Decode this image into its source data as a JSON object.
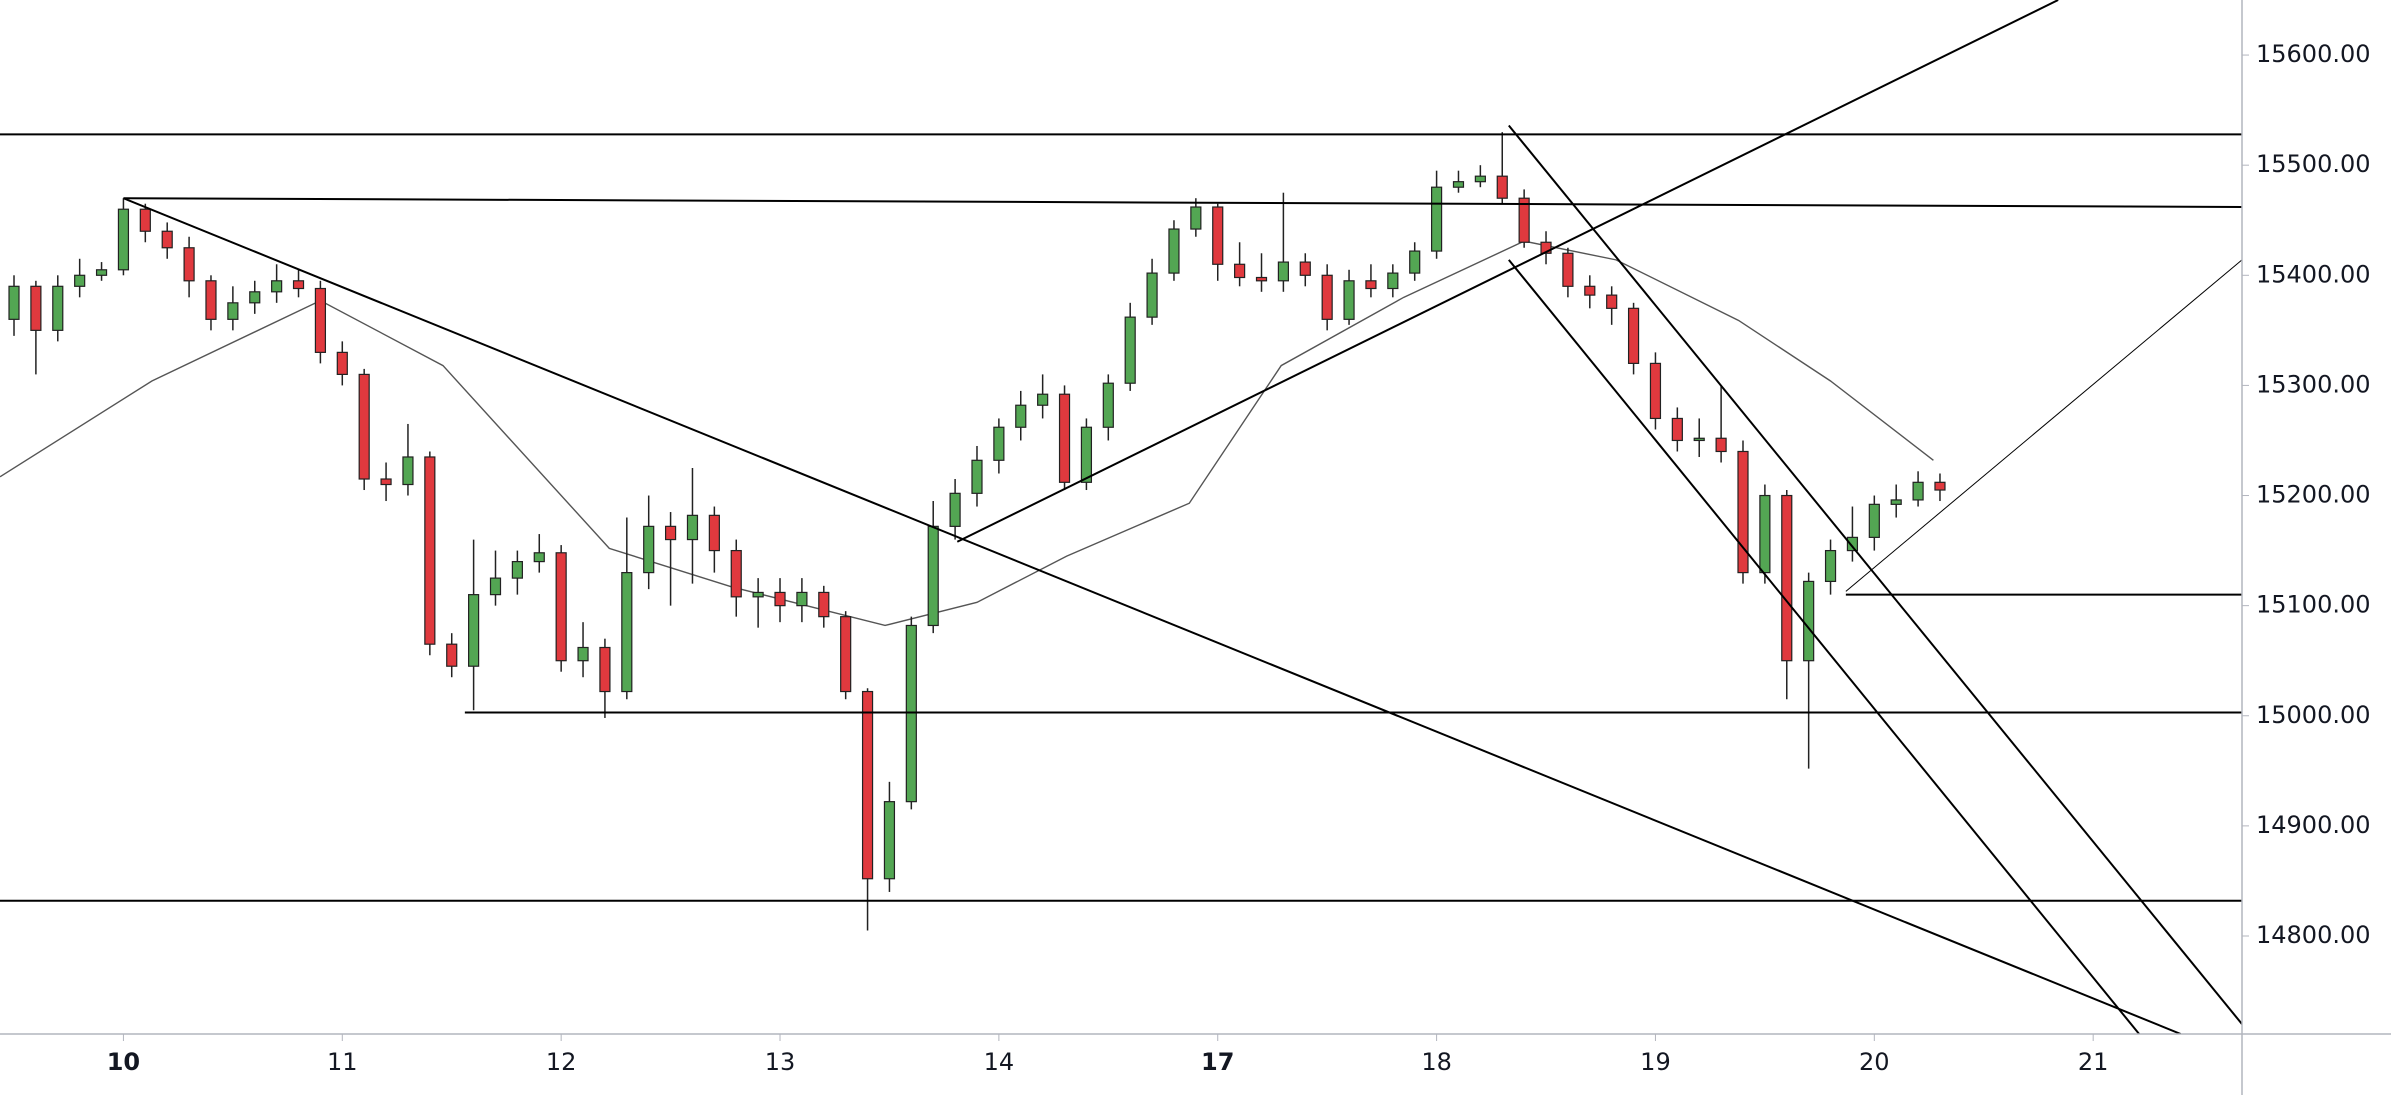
{
  "chart_data": {
    "type": "candlestick",
    "x": [
      -0.5,
      -0.4,
      -0.3,
      -0.2,
      -0.1,
      0,
      0.1,
      0.2,
      0.3,
      0.4,
      0.5,
      0.6,
      0.7,
      0.8,
      0.9,
      1,
      1.1,
      1.2,
      1.3,
      1.4,
      1.5,
      1.6,
      1.7,
      1.8,
      1.9,
      2,
      2.1,
      2.2,
      2.3,
      2.4,
      2.5,
      2.6,
      2.7,
      2.8,
      2.9,
      3,
      3.1,
      3.2,
      3.3,
      3.4,
      3.5,
      3.6,
      3.7,
      3.8,
      3.9,
      4,
      4.1,
      4.2,
      4.3,
      4.4,
      4.5,
      4.6,
      4.7,
      4.8,
      4.9,
      5,
      5.1,
      5.2,
      5.3,
      5.4,
      5.5,
      5.6,
      5.7,
      5.8,
      5.9,
      6,
      6.1,
      6.2,
      6.3,
      6.4,
      6.5,
      6.6,
      6.7,
      6.8,
      6.9,
      7,
      7.1,
      7.2,
      7.3,
      7.4,
      7.5,
      7.6,
      7.7,
      7.8,
      7.9,
      8,
      8.1,
      8.2,
      8.3
    ],
    "open": [
      15360,
      15390,
      15350,
      15390,
      15400,
      15405,
      15460,
      15440,
      15425,
      15395,
      15360,
      15375,
      15385,
      15395,
      15388,
      15330,
      15310,
      15215,
      15210,
      15235,
      15065,
      15045,
      15110,
      15125,
      15140,
      15148,
      15050,
      15062,
      15022,
      15130,
      15172,
      15160,
      15182,
      15150,
      15108,
      15112,
      15100,
      15112,
      15090,
      15022,
      14852,
      14922,
      15082,
      15172,
      15202,
      15232,
      15262,
      15282,
      15292,
      15212,
      15262,
      15302,
      15362,
      15402,
      15442,
      15462,
      15410,
      15398,
      15395,
      15412,
      15400,
      15360,
      15395,
      15388,
      15402,
      15422,
      15480,
      15485,
      15490,
      15470,
      15430,
      15420,
      15390,
      15382,
      15370,
      15320,
      15270,
      15250,
      15252,
      15240,
      15130,
      15200,
      15050,
      15122,
      15150,
      15162,
      15192,
      15196,
      15212
    ],
    "high": [
      15400,
      15395,
      15400,
      15415,
      15412,
      15470,
      15465,
      15448,
      15435,
      15400,
      15390,
      15395,
      15410,
      15405,
      15395,
      15340,
      15315,
      15230,
      15265,
      15240,
      15075,
      15160,
      15150,
      15150,
      15165,
      15155,
      15085,
      15070,
      15180,
      15200,
      15185,
      15225,
      15190,
      15160,
      15125,
      15125,
      15125,
      15118,
      15095,
      15025,
      14940,
      15090,
      15195,
      15215,
      15245,
      15270,
      15295,
      15310,
      15300,
      15270,
      15310,
      15375,
      15415,
      15450,
      15470,
      15465,
      15430,
      15420,
      15475,
      15420,
      15410,
      15405,
      15410,
      15410,
      15430,
      15495,
      15495,
      15500,
      15530,
      15478,
      15440,
      15425,
      15400,
      15390,
      15375,
      15330,
      15280,
      15270,
      15300,
      15250,
      15210,
      15205,
      15130,
      15160,
      15190,
      15200,
      15210,
      15222,
      15220
    ],
    "low": [
      15345,
      15310,
      15340,
      15380,
      15395,
      15400,
      15430,
      15415,
      15380,
      15350,
      15350,
      15365,
      15375,
      15380,
      15320,
      15300,
      15205,
      15195,
      15200,
      15055,
      15035,
      15005,
      15100,
      15110,
      15130,
      15040,
      15035,
      14998,
      15015,
      15115,
      15100,
      15120,
      15130,
      15090,
      15080,
      15085,
      15085,
      15080,
      15015,
      14805,
      14840,
      14915,
      15075,
      15160,
      15190,
      15220,
      15250,
      15270,
      15205,
      15205,
      15250,
      15295,
      15355,
      15395,
      15435,
      15395,
      15390,
      15385,
      15385,
      15390,
      15350,
      15355,
      15380,
      15380,
      15395,
      15415,
      15475,
      15480,
      15465,
      15425,
      15410,
      15380,
      15370,
      15355,
      15310,
      15260,
      15240,
      15235,
      15230,
      15120,
      15120,
      15015,
      14952,
      15110,
      15140,
      15150,
      15180,
      15190,
      15195
    ],
    "close": [
      15390,
      15350,
      15390,
      15400,
      15405,
      15460,
      15440,
      15425,
      15395,
      15360,
      15375,
      15385,
      15395,
      15388,
      15330,
      15310,
      15215,
      15210,
      15235,
      15065,
      15045,
      15110,
      15125,
      15140,
      15148,
      15050,
      15062,
      15022,
      15130,
      15172,
      15160,
      15182,
      15150,
      15108,
      15112,
      15100,
      15112,
      15090,
      15022,
      14852,
      14922,
      15082,
      15172,
      15202,
      15232,
      15262,
      15282,
      15292,
      15212,
      15262,
      15302,
      15362,
      15402,
      15442,
      15462,
      15410,
      15398,
      15395,
      15412,
      15400,
      15360,
      15395,
      15388,
      15402,
      15422,
      15480,
      15485,
      15490,
      15470,
      15430,
      15420,
      15390,
      15382,
      15370,
      15320,
      15270,
      15250,
      15252,
      15240,
      15130,
      15200,
      15050,
      15122,
      15150,
      15162,
      15192,
      15196,
      15212,
      15205
    ],
    "up_color": "#53a653",
    "down_color": "#e0393e",
    "xlim": [
      -0.564,
      9.68
    ],
    "ylim": [
      14711,
      15650
    ],
    "xticks": [
      {
        "value": 0,
        "label": "10"
      },
      {
        "value": 1,
        "label": "11"
      },
      {
        "value": 2,
        "label": "12"
      },
      {
        "value": 3,
        "label": "13"
      },
      {
        "value": 4,
        "label": "14"
      },
      {
        "value": 5,
        "label": "17"
      },
      {
        "value": 6,
        "label": "18"
      },
      {
        "value": 7,
        "label": "19"
      },
      {
        "value": 8,
        "label": "20"
      },
      {
        "value": 9,
        "label": "21"
      }
    ],
    "yticks": [
      {
        "value": 14800,
        "label": "14800.00"
      },
      {
        "value": 14900,
        "label": "14900.00"
      },
      {
        "value": 15000,
        "label": "15000.00"
      },
      {
        "value": 15100,
        "label": "15100.00"
      },
      {
        "value": 15200,
        "label": "15200.00"
      },
      {
        "value": 15300,
        "label": "15300.00"
      },
      {
        "value": 15400,
        "label": "15400.00"
      },
      {
        "value": 15500,
        "label": "15500.00"
      },
      {
        "value": 15600,
        "label": "15600.00"
      }
    ],
    "moving_average": {
      "color": "#555555",
      "x": [
        -0.564,
        0.13,
        0.9,
        1.46,
        2.22,
        2.78,
        3.48,
        3.9,
        4.31,
        4.87,
        5.29,
        5.85,
        6.4,
        6.82,
        7.38,
        7.8,
        8.27
      ],
      "values": [
        15217,
        15304,
        15377,
        15318,
        15152,
        15117,
        15082,
        15103,
        15145,
        15193,
        15318,
        15380,
        15431,
        15414,
        15359,
        15304,
        15232
      ]
    },
    "drawings": [
      {
        "x": [
          -0.564,
          9.68
        ],
        "y": [
          15528,
          15528
        ],
        "width": 2
      },
      {
        "x": [
          -0.564,
          9.68
        ],
        "y": [
          14832,
          14832
        ],
        "width": 2
      },
      {
        "x": [
          0,
          9.68
        ],
        "y": [
          15470,
          15462
        ],
        "width": 2
      },
      {
        "x": [
          0,
          9.4
        ],
        "y": [
          15470,
          14711
        ],
        "width": 2
      },
      {
        "x": [
          1.56,
          9.68
        ],
        "y": [
          15003,
          15003
        ],
        "width": 2
      },
      {
        "x": [
          3.81,
          8.84
        ],
        "y": [
          15158,
          15650
        ],
        "width": 2
      },
      {
        "x": [
          6.33,
          9.68
        ],
        "y": [
          15536,
          14720
        ],
        "width": 2
      },
      {
        "x": [
          6.33,
          9.21
        ],
        "y": [
          15414,
          14711
        ],
        "width": 2
      },
      {
        "x": [
          7.87,
          9.68
        ],
        "y": [
          15113,
          15414
        ],
        "width": 1
      },
      {
        "x": [
          7.87,
          9.68
        ],
        "y": [
          15110,
          15110
        ],
        "width": 2
      }
    ]
  }
}
